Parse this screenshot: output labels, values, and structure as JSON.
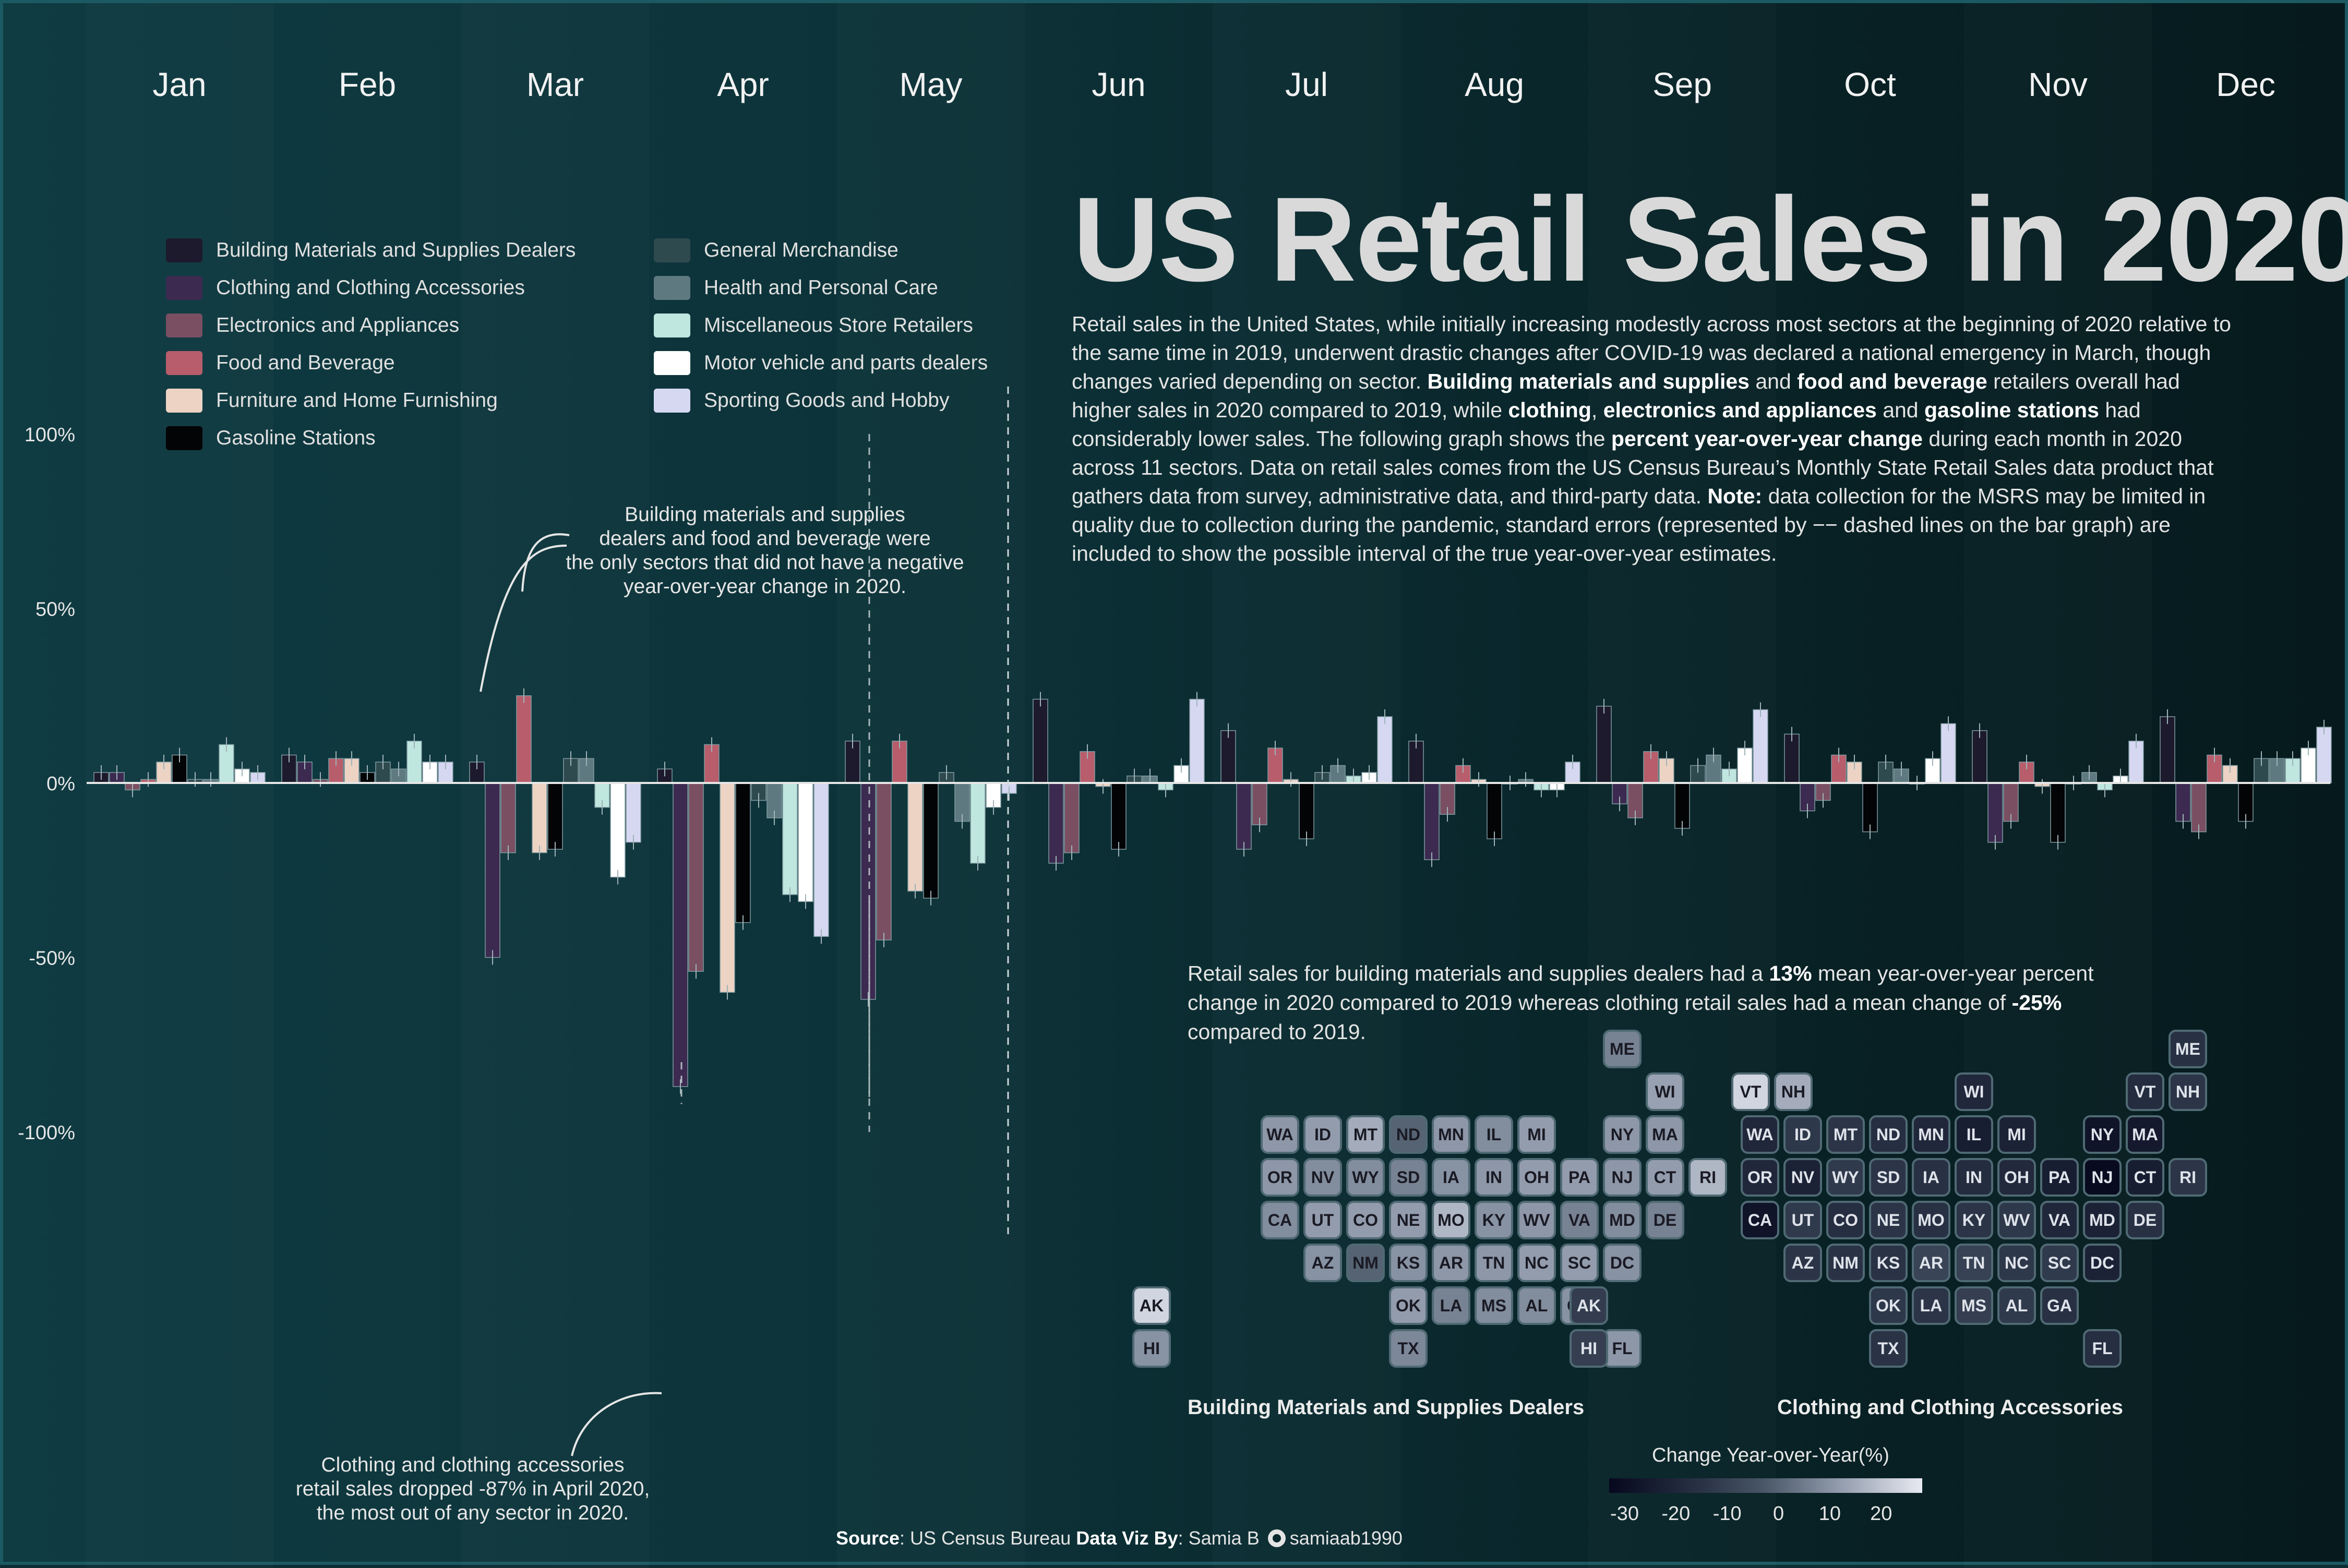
{
  "title": "US Retail Sales in 2020",
  "description_html": "Retail sales in the United States, while initially increasing modestly across most sectors at the beginning of 2020 relative to the same time in 2019, underwent drastic changes after COVID-19 was declared a national emergency in March, though changes varied depending on sector. <b>Building materials and supplies</b> and <b>food and beverage</b> retailers overall had higher sales in 2020 compared to 2019, while <b>clothing</b>, <b>electronics and appliances</b> and <b>gasoline stations</b>  had considerably lower sales. The following graph shows the <b>percent year-over-year change</b> during each month in 2020 across 11 sectors. Data on retail sales comes from the US Census Bureau’s Monthly State Retail Sales data product that gathers data from survey, administrative data, and third-party data. <b>Note:</b> data collection for the MSRS may be limited in quality due to collection during the pandemic, standard errors (represented by −− dashed lines on the bar graph) are included to show the possible interval of the true year-over-year estimates.",
  "annotations": {
    "building": [
      "Building materials and supplies",
      "dealers and food and beverage were",
      "the only sectors that did not have a negative",
      "year-over-year change in 2020."
    ],
    "clothing": [
      "Clothing and clothing accessories",
      "retail sales dropped -87% in April 2020,",
      "the most out of any sector in 2020."
    ]
  },
  "map_intro_html": "Retail sales for building materials and supplies dealers had a <b>13%</b> mean year-over-year percent change in 2020 compared to 2019 whereas clothing retail sales had a mean change of <b>-25%</b> compared to 2019.",
  "map_titles": [
    "Building Materials and Supplies Dealers",
    "Clothing and Clothing Accessories"
  ],
  "colorbar": {
    "title": "Change Year-over-Year(%)",
    "ticks": [
      "-30",
      "-20",
      "-10",
      "0",
      "10",
      "20"
    ],
    "tick_values": [
      -30,
      -20,
      -10,
      0,
      10,
      20
    ],
    "range": [
      -33,
      28
    ]
  },
  "source_html": "<b>Source</b>: US Census Bureau <b>Data Viz By</b>: Samia B",
  "source_handle": "samiaab1990",
  "colors": {
    "sector": {
      "Building Materials and Supplies Dealers": "#1c1a2c",
      "Clothing and Clothing Accessories": "#3c2a50",
      "Electronics and Appliances": "#7a4f62",
      "Food and Beverage": "#b85d6b",
      "Furniture and Home Furnishing": "#ecd3c4",
      "Gasoline Stations": "#020406",
      "General Merchandise": "#2f4a4e",
      "Health and Personal Care": "#5e7a80",
      "Miscellaneous Store Retailers": "#bfe6df",
      "Motor vehicle and parts dealers": "#ffffff",
      "Sporting Goods and Hobby": "#d6d8f2"
    },
    "axis": "#e6e6e6"
  },
  "chart_data": {
    "type": "bar",
    "categories": [
      "Jan",
      "Feb",
      "Mar",
      "Apr",
      "May",
      "Jun",
      "Jul",
      "Aug",
      "Sep",
      "Oct",
      "Nov",
      "Dec"
    ],
    "ylim": [
      -100,
      100
    ],
    "yticks": [
      100,
      50,
      0,
      -50,
      -100
    ],
    "ytick_labels": [
      "100%",
      "50%",
      "0%",
      "-50%",
      "-100%"
    ],
    "series": [
      {
        "name": "Building Materials and Supplies Dealers",
        "values": [
          3,
          8,
          6,
          4,
          12,
          24,
          15,
          12,
          22,
          14,
          15,
          19
        ]
      },
      {
        "name": "Clothing and Clothing Accessories",
        "values": [
          3,
          6,
          -50,
          -87,
          -62,
          -23,
          -19,
          -22,
          -6,
          -8,
          -17,
          -11
        ]
      },
      {
        "name": "Electronics and Appliances",
        "values": [
          -2,
          1,
          -20,
          -54,
          -45,
          -20,
          -12,
          -9,
          -10,
          -5,
          -11,
          -14
        ]
      },
      {
        "name": "Food and Beverage",
        "values": [
          1,
          7,
          25,
          11,
          12,
          9,
          10,
          5,
          9,
          8,
          6,
          8
        ]
      },
      {
        "name": "Furniture and Home Furnishing",
        "values": [
          6,
          7,
          -20,
          -60,
          -31,
          -1,
          1,
          1,
          7,
          6,
          -1,
          5
        ]
      },
      {
        "name": "Gasoline Stations",
        "values": [
          8,
          3,
          -19,
          -40,
          -33,
          -19,
          -16,
          -16,
          -13,
          -14,
          -17,
          -11
        ]
      },
      {
        "name": "General Merchandise",
        "values": [
          1,
          6,
          7,
          -5,
          3,
          2,
          3,
          0,
          5,
          6,
          0,
          7
        ]
      },
      {
        "name": "Health and Personal Care",
        "values": [
          1,
          4,
          7,
          -10,
          -11,
          2,
          5,
          1,
          8,
          4,
          3,
          7
        ]
      },
      {
        "name": "Miscellaneous Store Retailers",
        "values": [
          11,
          12,
          -7,
          -32,
          -23,
          -2,
          2,
          -2,
          4,
          0,
          -2,
          7
        ]
      },
      {
        "name": "Motor vehicle and parts dealers",
        "values": [
          4,
          6,
          -27,
          -34,
          -7,
          5,
          3,
          -2,
          10,
          7,
          2,
          10
        ]
      },
      {
        "name": "Sporting Goods and Hobby",
        "values": [
          3,
          6,
          -17,
          -44,
          -3,
          24,
          19,
          6,
          21,
          17,
          12,
          16
        ]
      }
    ],
    "standard_error_lines": [
      {
        "month": "Mar",
        "from": -100,
        "to": 100
      },
      {
        "month": "Apr",
        "from": -92,
        "to": -80
      },
      {
        "month": "May",
        "from": -90,
        "to": -34
      }
    ]
  },
  "maps": [
    {
      "title_index": 0,
      "tiles": [
        {
          "s": "ME",
          "c": 0,
          "r": 0,
          "v": 8
        },
        {
          "s": "WI",
          "c": 1,
          "r": 1,
          "v": 14
        },
        {
          "s": "VT",
          "c": 3,
          "r": 1,
          "v": 24
        },
        {
          "s": "NH",
          "c": 4,
          "r": 1,
          "v": 16
        },
        {
          "s": "WA",
          "c": -8,
          "r": 2,
          "v": 12
        },
        {
          "s": "ID",
          "c": -7,
          "r": 2,
          "v": 13
        },
        {
          "s": "MT",
          "c": -6,
          "r": 2,
          "v": 16
        },
        {
          "s": "ND",
          "c": -5,
          "r": 2,
          "v": 2
        },
        {
          "s": "MN",
          "c": -4,
          "r": 2,
          "v": 12
        },
        {
          "s": "IL",
          "c": -3,
          "r": 2,
          "v": 10
        },
        {
          "s": "MI",
          "c": -2,
          "r": 2,
          "v": 13
        },
        {
          "s": "NY",
          "c": 0,
          "r": 2,
          "v": 12
        },
        {
          "s": "MA",
          "c": 1,
          "r": 2,
          "v": 12
        },
        {
          "s": "OR",
          "c": -8,
          "r": 3,
          "v": 12
        },
        {
          "s": "NV",
          "c": -7,
          "r": 3,
          "v": 10
        },
        {
          "s": "WY",
          "c": -6,
          "r": 3,
          "v": 10
        },
        {
          "s": "SD",
          "c": -5,
          "r": 3,
          "v": 8
        },
        {
          "s": "IA",
          "c": -4,
          "r": 3,
          "v": 11
        },
        {
          "s": "IN",
          "c": -3,
          "r": 3,
          "v": 12
        },
        {
          "s": "OH",
          "c": -2,
          "r": 3,
          "v": 13
        },
        {
          "s": "PA",
          "c": -1,
          "r": 3,
          "v": 13
        },
        {
          "s": "NJ",
          "c": 0,
          "r": 3,
          "v": 12
        },
        {
          "s": "CT",
          "c": 1,
          "r": 3,
          "v": 13
        },
        {
          "s": "RI",
          "c": 2,
          "r": 3,
          "v": 18
        },
        {
          "s": "CA",
          "c": -8,
          "r": 4,
          "v": 10
        },
        {
          "s": "UT",
          "c": -7,
          "r": 4,
          "v": 13
        },
        {
          "s": "CO",
          "c": -6,
          "r": 4,
          "v": 13
        },
        {
          "s": "NE",
          "c": -5,
          "r": 4,
          "v": 13
        },
        {
          "s": "MO",
          "c": -4,
          "r": 4,
          "v": 18
        },
        {
          "s": "KY",
          "c": -3,
          "r": 4,
          "v": 11
        },
        {
          "s": "WV",
          "c": -2,
          "r": 4,
          "v": 12
        },
        {
          "s": "VA",
          "c": -1,
          "r": 4,
          "v": 8
        },
        {
          "s": "MD",
          "c": 0,
          "r": 4,
          "v": 10
        },
        {
          "s": "DE",
          "c": 1,
          "r": 4,
          "v": 8
        },
        {
          "s": "AZ",
          "c": -7,
          "r": 5,
          "v": 11
        },
        {
          "s": "NM",
          "c": -6,
          "r": 5,
          "v": 2
        },
        {
          "s": "KS",
          "c": -5,
          "r": 5,
          "v": 11
        },
        {
          "s": "AR",
          "c": -4,
          "r": 5,
          "v": 12
        },
        {
          "s": "TN",
          "c": -3,
          "r": 5,
          "v": 12
        },
        {
          "s": "NC",
          "c": -2,
          "r": 5,
          "v": 13
        },
        {
          "s": "SC",
          "c": -1,
          "r": 5,
          "v": 13
        },
        {
          "s": "DC",
          "c": 0,
          "r": 5,
          "v": 11
        },
        {
          "s": "AK",
          "c": -11,
          "r": 6,
          "v": 24
        },
        {
          "s": "OK",
          "c": -5,
          "r": 6,
          "v": 13
        },
        {
          "s": "LA",
          "c": -4,
          "r": 6,
          "v": 8
        },
        {
          "s": "MS",
          "c": -3,
          "r": 6,
          "v": 10
        },
        {
          "s": "AL",
          "c": -2,
          "r": 6,
          "v": 10
        },
        {
          "s": "GA",
          "c": -1,
          "r": 6,
          "v": 11
        },
        {
          "s": "HI",
          "c": -11,
          "r": 7,
          "v": 11
        },
        {
          "s": "TX",
          "c": -5,
          "r": 7,
          "v": 9
        },
        {
          "s": "FL",
          "c": 0,
          "r": 7,
          "v": 12
        }
      ]
    },
    {
      "title_index": 1,
      "tiles": [
        {
          "s": "ME",
          "c": 0,
          "r": 0,
          "v": -16
        },
        {
          "s": "WI",
          "c": -5,
          "r": 1,
          "v": -20
        },
        {
          "s": "VT",
          "c": -1,
          "r": 1,
          "v": -18
        },
        {
          "s": "NH",
          "c": 0,
          "r": 1,
          "v": -14
        },
        {
          "s": "WA",
          "c": -10,
          "r": 2,
          "v": -20
        },
        {
          "s": "ID",
          "c": -9,
          "r": 2,
          "v": -13
        },
        {
          "s": "MT",
          "c": -8,
          "r": 2,
          "v": -14
        },
        {
          "s": "ND",
          "c": -7,
          "r": 2,
          "v": -17
        },
        {
          "s": "MN",
          "c": -6,
          "r": 2,
          "v": -20
        },
        {
          "s": "IL",
          "c": -5,
          "r": 2,
          "v": -24
        },
        {
          "s": "MI",
          "c": -4,
          "r": 2,
          "v": -22
        },
        {
          "s": "NY",
          "c": -2,
          "r": 2,
          "v": -28
        },
        {
          "s": "MA",
          "c": -1,
          "r": 2,
          "v": -26
        },
        {
          "s": "OR",
          "c": -10,
          "r": 3,
          "v": -20
        },
        {
          "s": "NV",
          "c": -9,
          "r": 3,
          "v": -22
        },
        {
          "s": "WY",
          "c": -8,
          "r": 3,
          "v": -12
        },
        {
          "s": "SD",
          "c": -7,
          "r": 3,
          "v": -14
        },
        {
          "s": "IA",
          "c": -6,
          "r": 3,
          "v": -16
        },
        {
          "s": "IN",
          "c": -5,
          "r": 3,
          "v": -18
        },
        {
          "s": "OH",
          "c": -4,
          "r": 3,
          "v": -19
        },
        {
          "s": "PA",
          "c": -3,
          "r": 3,
          "v": -24
        },
        {
          "s": "NJ",
          "c": -2,
          "r": 3,
          "v": -32
        },
        {
          "s": "CT",
          "c": -1,
          "r": 3,
          "v": -24
        },
        {
          "s": "RI",
          "c": 0,
          "r": 3,
          "v": -14
        },
        {
          "s": "CA",
          "c": -10,
          "r": 4,
          "v": -28
        },
        {
          "s": "UT",
          "c": -9,
          "r": 4,
          "v": -12
        },
        {
          "s": "CO",
          "c": -8,
          "r": 4,
          "v": -17
        },
        {
          "s": "NE",
          "c": -7,
          "r": 4,
          "v": -14
        },
        {
          "s": "MO",
          "c": -6,
          "r": 4,
          "v": -16
        },
        {
          "s": "KY",
          "c": -5,
          "r": 4,
          "v": -14
        },
        {
          "s": "WV",
          "c": -4,
          "r": 4,
          "v": -13
        },
        {
          "s": "VA",
          "c": -3,
          "r": 4,
          "v": -20
        },
        {
          "s": "MD",
          "c": -2,
          "r": 4,
          "v": -22
        },
        {
          "s": "DE",
          "c": -1,
          "r": 4,
          "v": -16
        },
        {
          "s": "AZ",
          "c": -9,
          "r": 5,
          "v": -14
        },
        {
          "s": "NM",
          "c": -8,
          "r": 5,
          "v": -15
        },
        {
          "s": "KS",
          "c": -7,
          "r": 5,
          "v": -15
        },
        {
          "s": "AR",
          "c": -6,
          "r": 5,
          "v": -8
        },
        {
          "s": "TN",
          "c": -5,
          "r": 5,
          "v": -9
        },
        {
          "s": "NC",
          "c": -4,
          "r": 5,
          "v": -13
        },
        {
          "s": "SC",
          "c": -3,
          "r": 5,
          "v": -12
        },
        {
          "s": "DC",
          "c": -2,
          "r": 5,
          "v": -22
        },
        {
          "s": "AK",
          "c": -14,
          "r": 6,
          "v": -11
        },
        {
          "s": "OK",
          "c": -7,
          "r": 6,
          "v": -13
        },
        {
          "s": "LA",
          "c": -6,
          "r": 6,
          "v": -14
        },
        {
          "s": "MS",
          "c": -5,
          "r": 6,
          "v": -10
        },
        {
          "s": "AL",
          "c": -4,
          "r": 6,
          "v": -12
        },
        {
          "s": "GA",
          "c": -3,
          "r": 6,
          "v": -16
        },
        {
          "s": "HI",
          "c": -14,
          "r": 7,
          "v": -10
        },
        {
          "s": "TX",
          "c": -7,
          "r": 7,
          "v": -15
        },
        {
          "s": "FL",
          "c": -2,
          "r": 7,
          "v": -17
        }
      ]
    }
  ]
}
